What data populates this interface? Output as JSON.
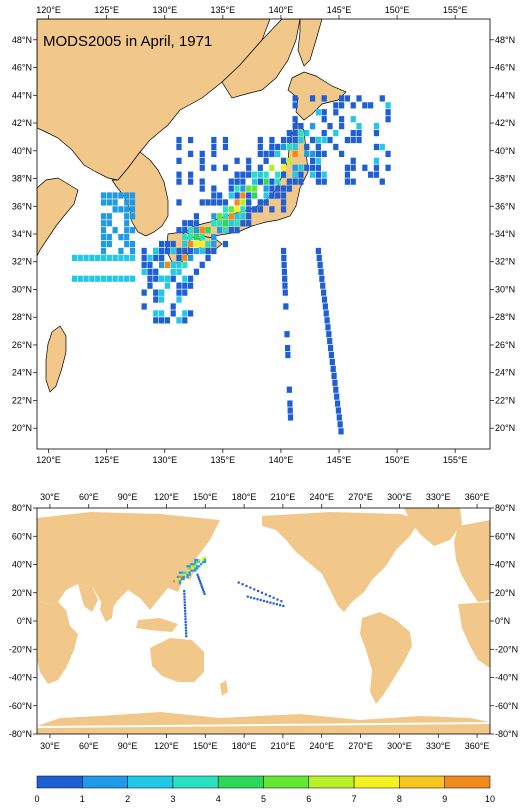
{
  "regional_map": {
    "title": "MODS2005 in April, 1971",
    "lon_labels": [
      "120°E",
      "125°E",
      "130°E",
      "135°E",
      "140°E",
      "145°E",
      "150°E",
      "155°E"
    ],
    "lat_labels": [
      "48°N",
      "46°N",
      "44°N",
      "42°N",
      "40°N",
      "38°N",
      "36°N",
      "34°N",
      "32°N",
      "30°N",
      "28°N",
      "26°N",
      "24°N",
      "22°N",
      "20°N"
    ],
    "extent": {
      "lon": [
        119,
        158
      ],
      "lat": [
        18.5,
        49.5
      ]
    }
  },
  "global_map": {
    "lon_labels": [
      "30°E",
      "60°E",
      "90°E",
      "120°E",
      "150°E",
      "180°E",
      "210°E",
      "240°E",
      "270°E",
      "300°E",
      "330°E",
      "360°E"
    ],
    "lat_labels": [
      "80°N",
      "60°N",
      "40°N",
      "20°N",
      "0°N",
      "-20°N",
      "-40°N",
      "-60°N",
      "-80°N"
    ],
    "extent": {
      "lon": [
        20,
        370
      ],
      "lat": [
        -80,
        80
      ]
    }
  },
  "colorbar": {
    "labels": [
      "0",
      "1",
      "2",
      "3",
      "4",
      "5",
      "6",
      "7",
      "8",
      "9",
      "10"
    ],
    "colors": [
      "#1e5fd6",
      "#1e9ae6",
      "#22c8e8",
      "#2ae0c0",
      "#2ad85a",
      "#62e832",
      "#b8f028",
      "#f4f222",
      "#f4c61e",
      "#f08a1c",
      "#e8401a"
    ]
  },
  "colors": {
    "land": "#f2c88a",
    "ocean": "#ffffff",
    "coast": "#000000"
  }
}
